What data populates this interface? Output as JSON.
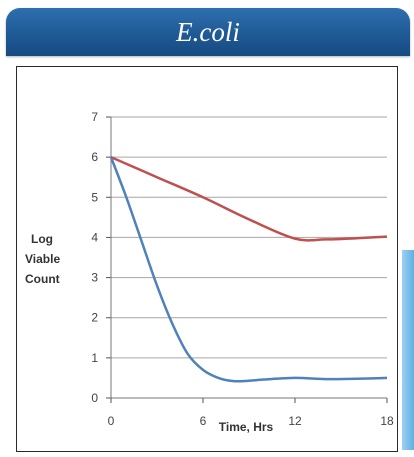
{
  "banner": {
    "title": "E.coli"
  },
  "colors": {
    "banner": "#215d99",
    "series_red": "#c0504d",
    "series_blue": "#4f81bd",
    "grid": "#a6a6a6"
  },
  "chart_data": {
    "type": "line",
    "title": "",
    "xlabel": "Time, Hrs",
    "ylabel": [
      "Log",
      "Viable",
      "Count"
    ],
    "xlim": [
      0,
      18
    ],
    "ylim": [
      0,
      7
    ],
    "xticks": [
      0,
      6,
      12,
      18
    ],
    "yticks": [
      0,
      1,
      2,
      3,
      4,
      5,
      6,
      7
    ],
    "grid": "horizontal",
    "legend": "none",
    "series": [
      {
        "color": "#c0504d",
        "x": [
          0,
          3,
          6,
          9,
          12,
          14,
          16,
          18
        ],
        "y": [
          6.0,
          5.5,
          5.0,
          4.45,
          3.97,
          3.95,
          3.98,
          4.02
        ]
      },
      {
        "color": "#4f81bd",
        "x": [
          0,
          1,
          2,
          3,
          4,
          5,
          6,
          7,
          8,
          9,
          10,
          12,
          14,
          16,
          18
        ],
        "y": [
          6.0,
          5.0,
          3.9,
          2.8,
          1.85,
          1.1,
          0.7,
          0.5,
          0.42,
          0.43,
          0.46,
          0.5,
          0.47,
          0.48,
          0.5
        ]
      }
    ]
  }
}
